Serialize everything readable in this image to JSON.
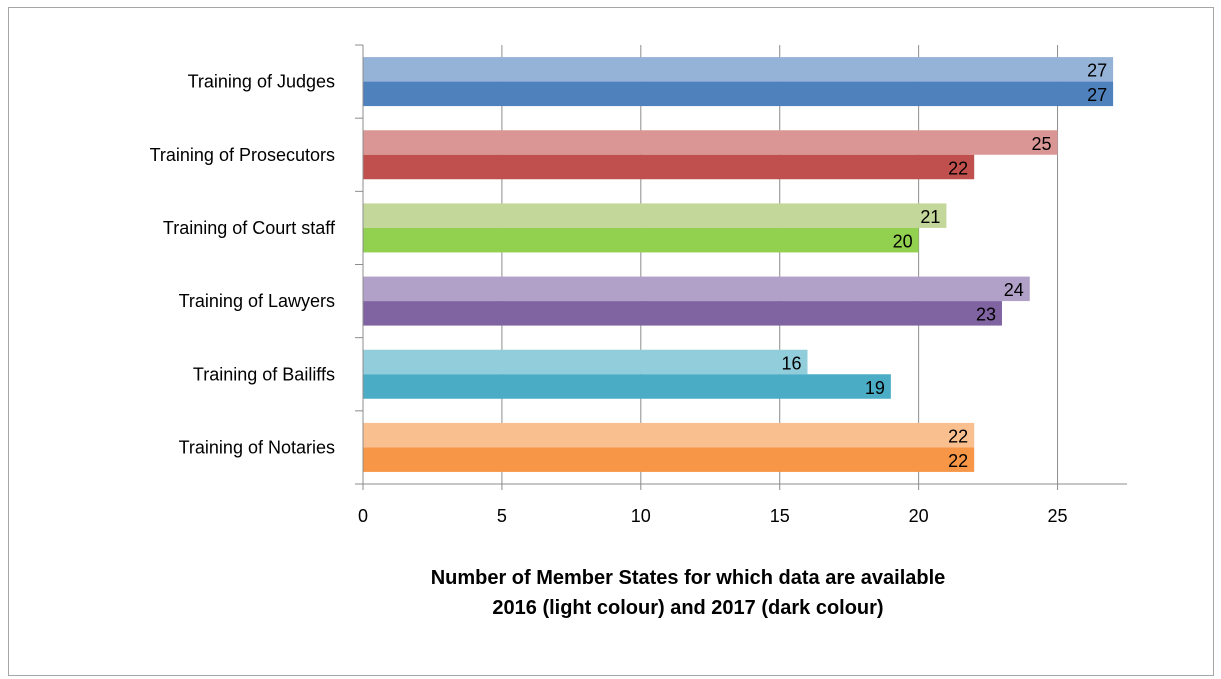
{
  "chart_data": {
    "type": "bar",
    "orientation": "horizontal",
    "categories": [
      "Training of Judges",
      "Training of Prosecutors",
      "Training of Court staff",
      "Training of Lawyers",
      "Training of Bailiffs",
      "Training of Notaries"
    ],
    "series": [
      {
        "name": "2016",
        "values": [
          27,
          25,
          21,
          24,
          16,
          22
        ]
      },
      {
        "name": "2017",
        "values": [
          27,
          22,
          20,
          23,
          19,
          22
        ]
      }
    ],
    "colors_2016": [
      "#95b3d7",
      "#da9694",
      "#c4d79b",
      "#b1a0c7",
      "#92cddc",
      "#fabf8f"
    ],
    "colors_2017": [
      "#4f81bd",
      "#c0504d",
      "#92d050",
      "#8064a2",
      "#4bacc6",
      "#f79646"
    ],
    "xlim": [
      0,
      27.5
    ],
    "xticks": [
      0,
      5,
      10,
      15,
      20,
      25
    ],
    "grid": true,
    "title_lines": [
      "Number of Member States for which data are available",
      "2016 (light colour) and 2017 (dark colour)"
    ]
  }
}
